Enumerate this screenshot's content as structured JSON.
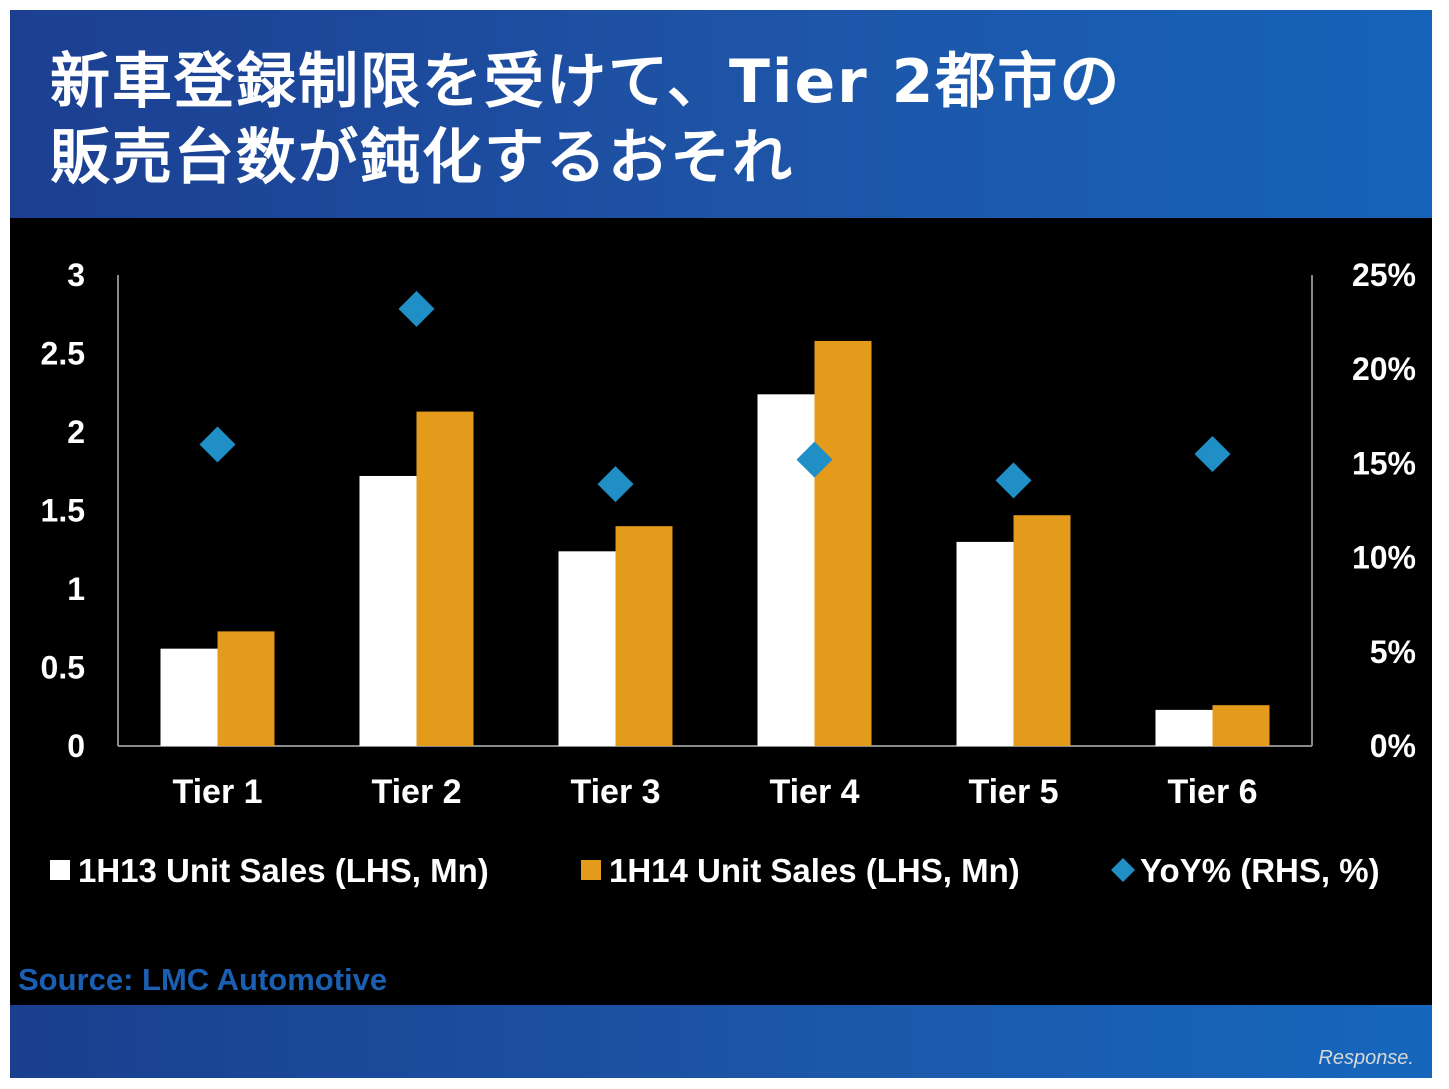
{
  "title": {
    "line1": "新車登録制限を受けて、Tier 2都市の",
    "line2": "販売台数が鈍化するおそれ"
  },
  "chart_data": {
    "type": "bar",
    "categories": [
      "Tier 1",
      "Tier 2",
      "Tier 3",
      "Tier 4",
      "Tier 5",
      "Tier 6"
    ],
    "series": [
      {
        "name": "1H13 Unit Sales (LHS, Mn)",
        "type": "bar",
        "axis": "left",
        "color": "#ffffff",
        "values": [
          0.62,
          1.72,
          1.24,
          2.24,
          1.3,
          0.23
        ]
      },
      {
        "name": "1H14 Unit Sales (LHS, Mn)",
        "type": "bar",
        "axis": "left",
        "color": "#e49a1b",
        "values": [
          0.73,
          2.13,
          1.4,
          2.58,
          1.47,
          0.26
        ]
      },
      {
        "name": "YoY% (RHS, %)",
        "type": "scatter",
        "marker": "diamond",
        "axis": "right",
        "color": "#1f8fc6",
        "values": [
          16,
          23.2,
          13.9,
          15.2,
          14.1,
          15.5
        ]
      }
    ],
    "y_left": {
      "ylim": [
        0,
        3
      ],
      "ticks": [
        "0",
        "0.5",
        "1",
        "1.5",
        "2",
        "2.5",
        "3"
      ]
    },
    "y_right": {
      "ylim": [
        0,
        25
      ],
      "ticks": [
        "0%",
        "5%",
        "10%",
        "15%",
        "20%",
        "25%"
      ]
    },
    "legend_position": "bottom",
    "grid": false
  },
  "source": "Source: LMC Automotive",
  "watermark": "Response."
}
